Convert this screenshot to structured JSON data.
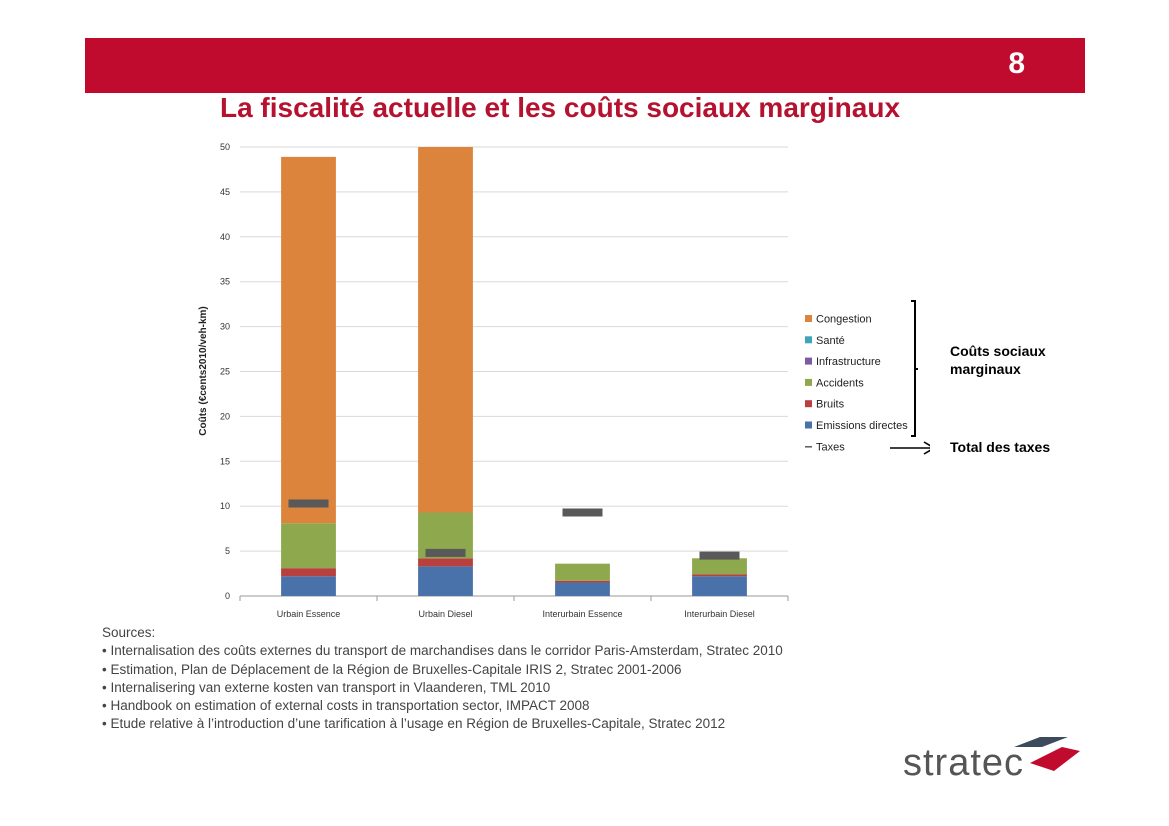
{
  "page_number": "8",
  "title": "La fiscalité actuelle et les coûts sociaux marginaux",
  "bracket_label": "Coûts sociaux marginaux",
  "taxes_label": "Total des taxes",
  "sources": {
    "heading": "Sources:",
    "items": [
      "• Internalisation des coûts externes du transport de marchandises dans le corridor Paris-Amsterdam, Stratec 2010",
      "• Estimation, Plan de Déplacement de la Région de Bruxelles-Capitale IRIS 2, Stratec 2001-2006",
      "• Internalisering van externe kosten van transport in Vlaanderen, TML 2010",
      "• Handbook on estimation of external costs in transportation sector, IMPACT 2008",
      "• Etude relative à l’introduction d’une tarification à l’usage en Région de Bruxelles-Capitale, Stratec 2012"
    ]
  },
  "logo": {
    "text": "stratec"
  },
  "colors": {
    "header": "#c00a2e",
    "title": "#b5122f",
    "grid": "#d9d9d9"
  },
  "chart_data": {
    "type": "bar",
    "stacked": true,
    "categories": [
      "Urbain Essence",
      "Urbain Diesel",
      "Interurbain Essence",
      "Interurbain Diesel"
    ],
    "ylabel": "Coûts (€cents2010/veh-km)",
    "ylim": [
      0,
      50
    ],
    "yticks": [
      0,
      5,
      10,
      15,
      20,
      25,
      30,
      35,
      40,
      45,
      50
    ],
    "grid": true,
    "legend_position": "right",
    "series": [
      {
        "name": "Emissions directes",
        "color": "#4a72aa",
        "values": [
          2.2,
          3.3,
          1.5,
          2.2
        ]
      },
      {
        "name": "Bruits",
        "color": "#b8403e",
        "values": [
          0.9,
          0.9,
          0.2,
          0.2
        ]
      },
      {
        "name": "Accidents",
        "color": "#8da84d",
        "values": [
          5.0,
          5.1,
          1.9,
          1.8
        ]
      },
      {
        "name": "Infrastructure",
        "color": "#7b5ba1",
        "values": [
          0,
          0,
          0,
          0
        ]
      },
      {
        "name": "Santé",
        "color": "#3fa3b9",
        "values": [
          0,
          0,
          0,
          0
        ]
      },
      {
        "name": "Congestion",
        "color": "#dc843b",
        "values": [
          40.8,
          40.7,
          0,
          0
        ]
      }
    ],
    "legend_order": [
      "Congestion",
      "Santé",
      "Infrastructure",
      "Accidents",
      "Bruits",
      "Emissions directes"
    ],
    "taxes": {
      "name": "Taxes",
      "color": "#595959",
      "values": [
        10.3,
        4.8,
        9.3,
        4.5
      ]
    }
  }
}
